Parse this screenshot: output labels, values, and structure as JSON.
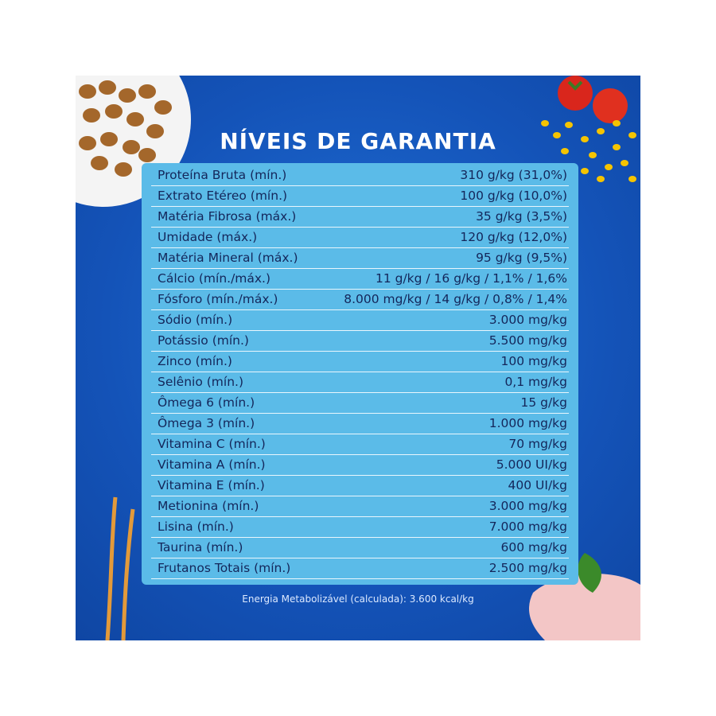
{
  "title": "NÍVEIS DE GARANTIA",
  "table": {
    "rows": [
      [
        "Proteína Bruta (mín.)",
        "310 g/kg (31,0%)"
      ],
      [
        "Extrato Etéreo (mín.)",
        "100 g/kg (10,0%)"
      ],
      [
        "Matéria Fibrosa (máx.)",
        "35 g/kg (3,5%)"
      ],
      [
        "Umidade (máx.)",
        "120 g/kg (12,0%)"
      ],
      [
        "Matéria Mineral (máx.)",
        "95 g/kg (9,5%)"
      ],
      [
        "Cálcio (mín./máx.)",
        "11 g/kg / 16 g/kg / 1,1% / 1,6%"
      ],
      [
        "Fósforo (mín./máx.)",
        "8.000 mg/kg / 14 g/kg / 0,8% / 1,4%"
      ],
      [
        "Sódio (mín.)",
        "3.000 mg/kg"
      ],
      [
        "Potássio (mín.)",
        "5.500 mg/kg"
      ],
      [
        "Zinco (mín.)",
        "100 mg/kg"
      ],
      [
        "Selênio (mín.)",
        "0,1 mg/kg"
      ],
      [
        "Ômega 6 (mín.)",
        "15 g/kg"
      ],
      [
        "Ômega 3 (mín.)",
        "1.000 mg/kg"
      ],
      [
        "Vitamina C (mín.)",
        "70 mg/kg"
      ],
      [
        "Vitamina A (mín.)",
        "5.000 UI/kg"
      ],
      [
        "Vitamina E (mín.)",
        "400 UI/kg"
      ],
      [
        "Metionina (mín.)",
        "3.000 mg/kg"
      ],
      [
        "Lisina (mín.)",
        "7.000 mg/kg"
      ],
      [
        "Taurina (mín.)",
        "600 mg/kg"
      ],
      [
        "Frutanos Totais (mín.)",
        "2.500 mg/kg"
      ]
    ]
  },
  "footnote": "Energia Metabolizável (calculada): 3.600 kcal/kg"
}
